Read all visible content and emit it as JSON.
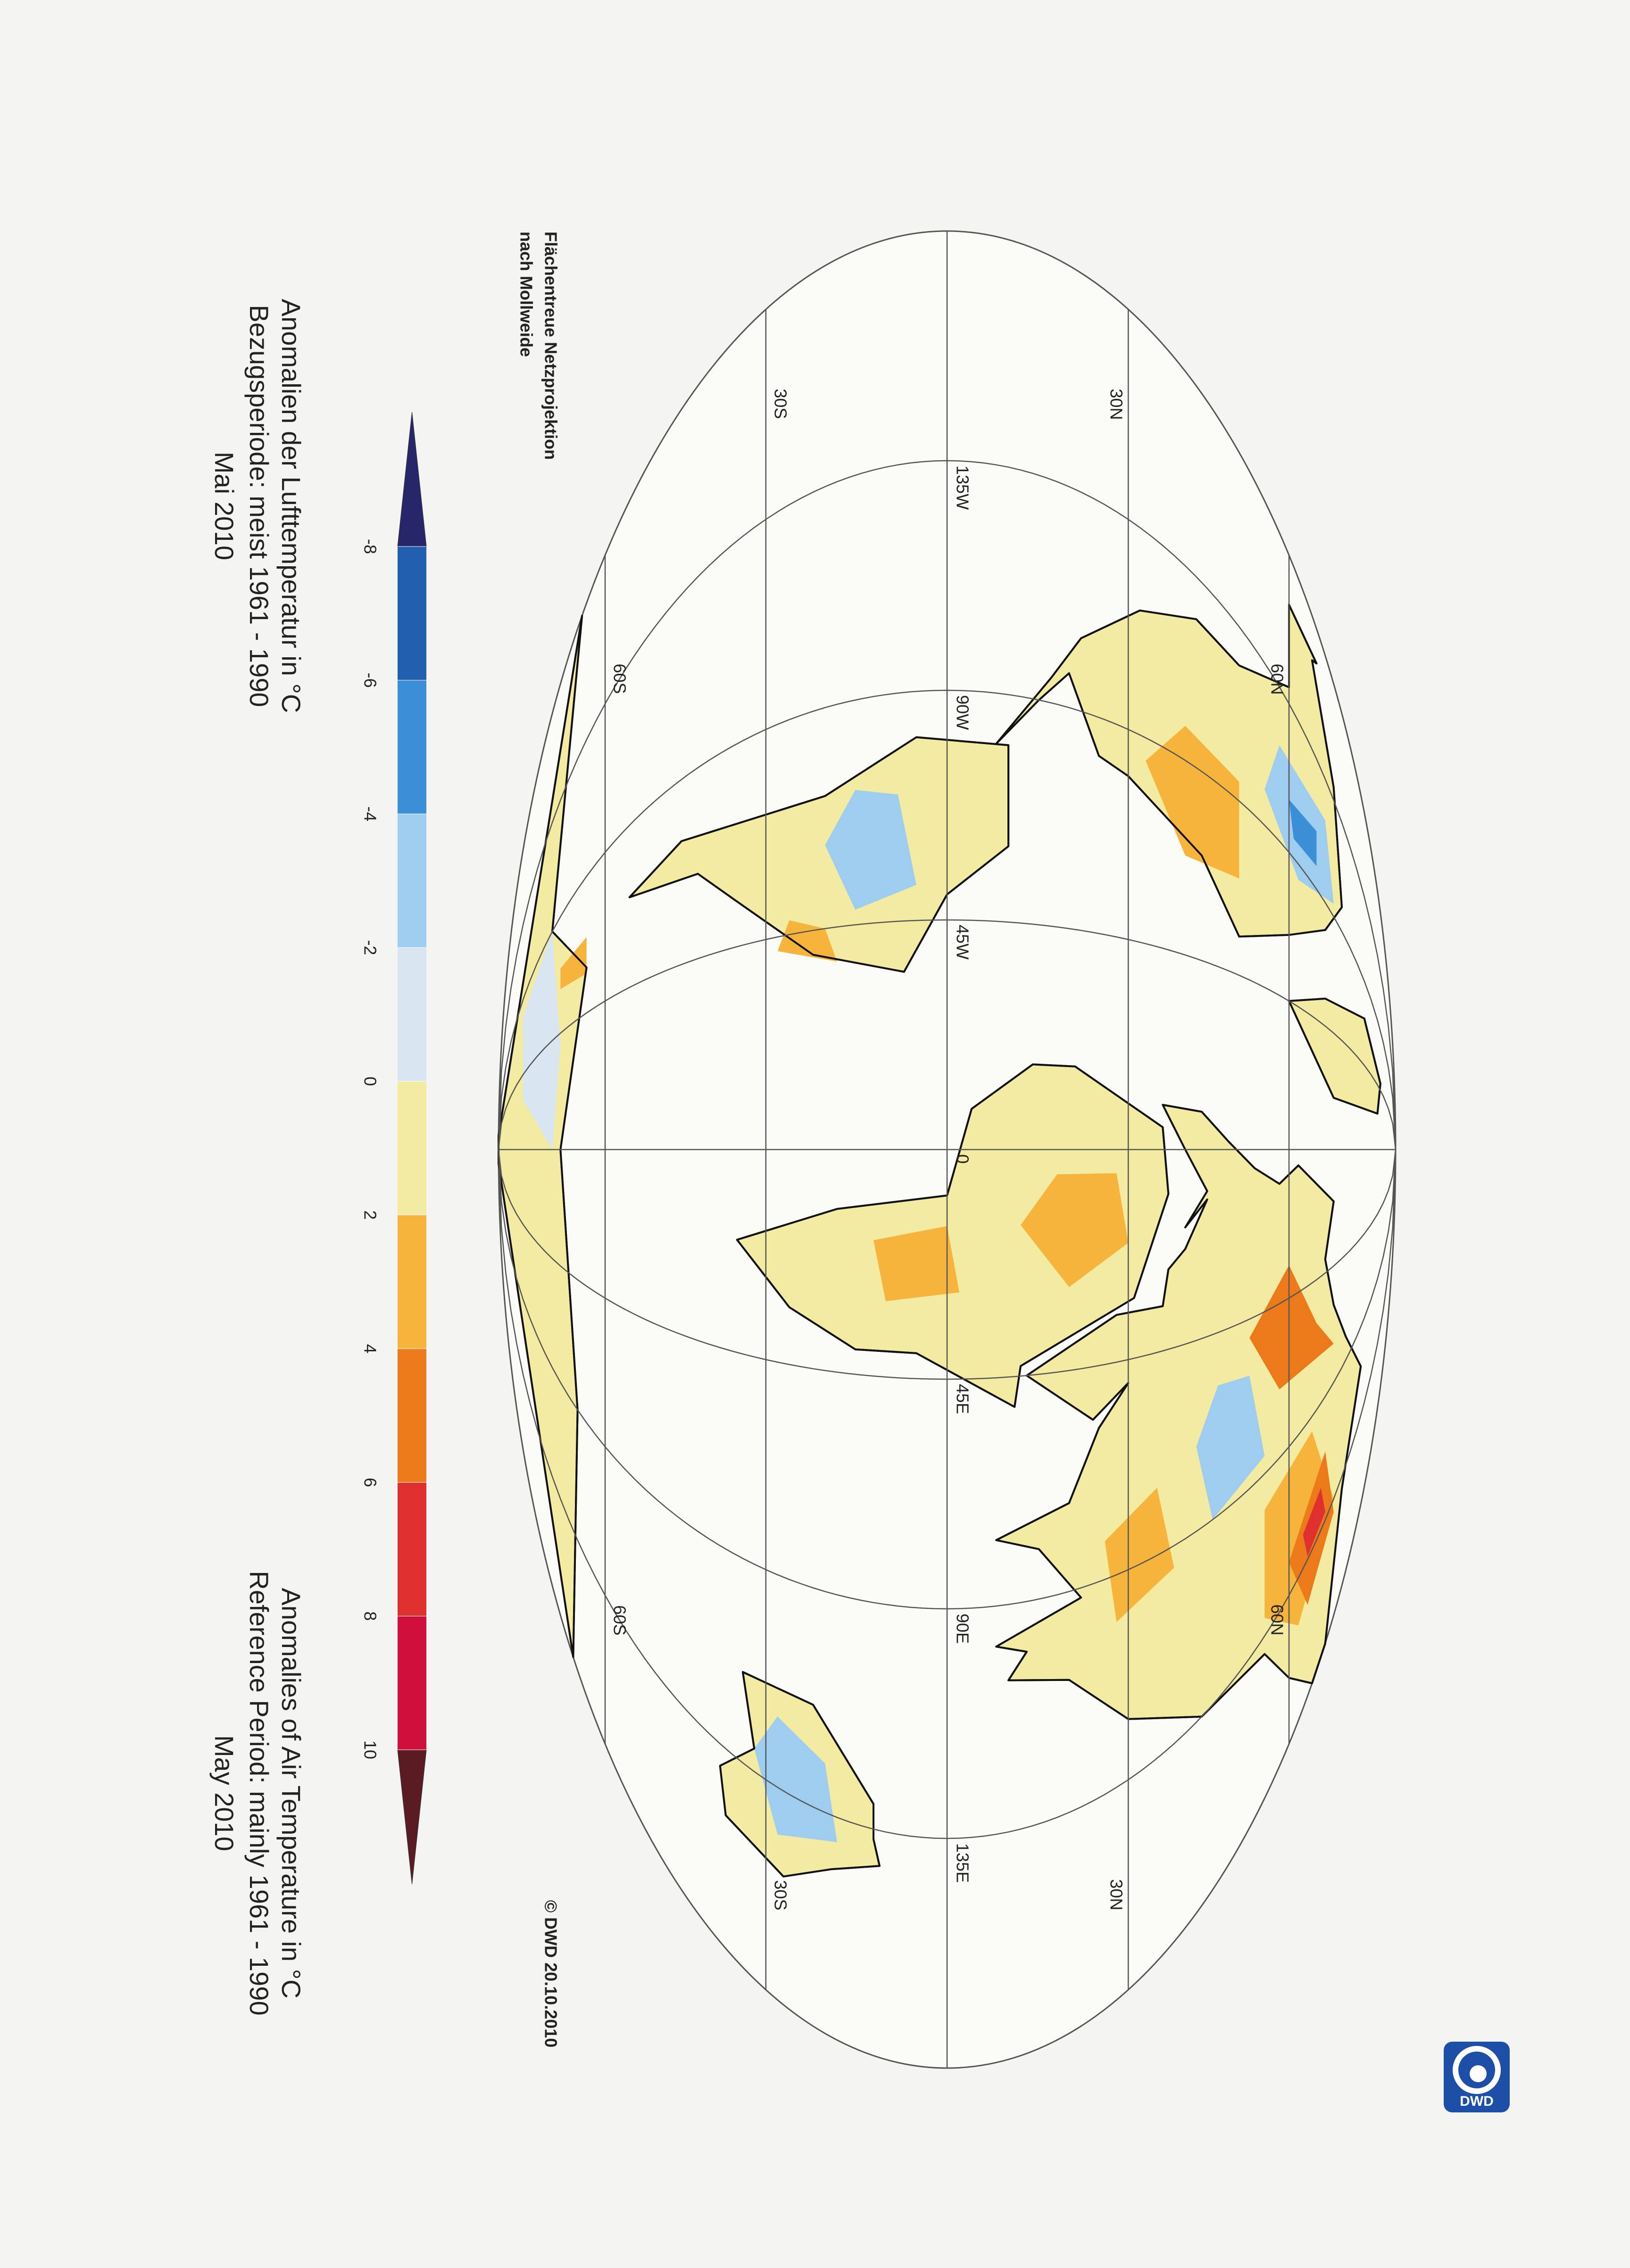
{
  "title_de": [
    "Anomalien der Lufttemperatur in °C",
    "Bezugsperiode: meist 1961 - 1990",
    "Mai 2010"
  ],
  "title_en": [
    "Anomalies of Air Temperature in °C",
    "Reference Period: mainly 1961 - 1990",
    "May 2010"
  ],
  "projection_note": [
    "Flächentreue Netzprojektion",
    "nach Mollweide"
  ],
  "copyright": "© DWD 20.10.2010",
  "logo": "DWD",
  "longitude_labels": [
    "135W",
    "90W",
    "45W",
    "0",
    "45E",
    "90E",
    "135E"
  ],
  "latitude_labels": [
    "60N",
    "30N",
    "30S",
    "60S"
  ],
  "legend": {
    "ticks": [
      -8,
      -6,
      -4,
      -2,
      0,
      2,
      4,
      6,
      8,
      10
    ],
    "colors": [
      "#27266b",
      "#1f5fae",
      "#3b8fd6",
      "#9fcdef",
      "#d9e5f1",
      "#f3eba2",
      "#f6b43c",
      "#ec7a1a",
      "#df3030",
      "#cf0f3c",
      "#5a1c22"
    ]
  }
}
